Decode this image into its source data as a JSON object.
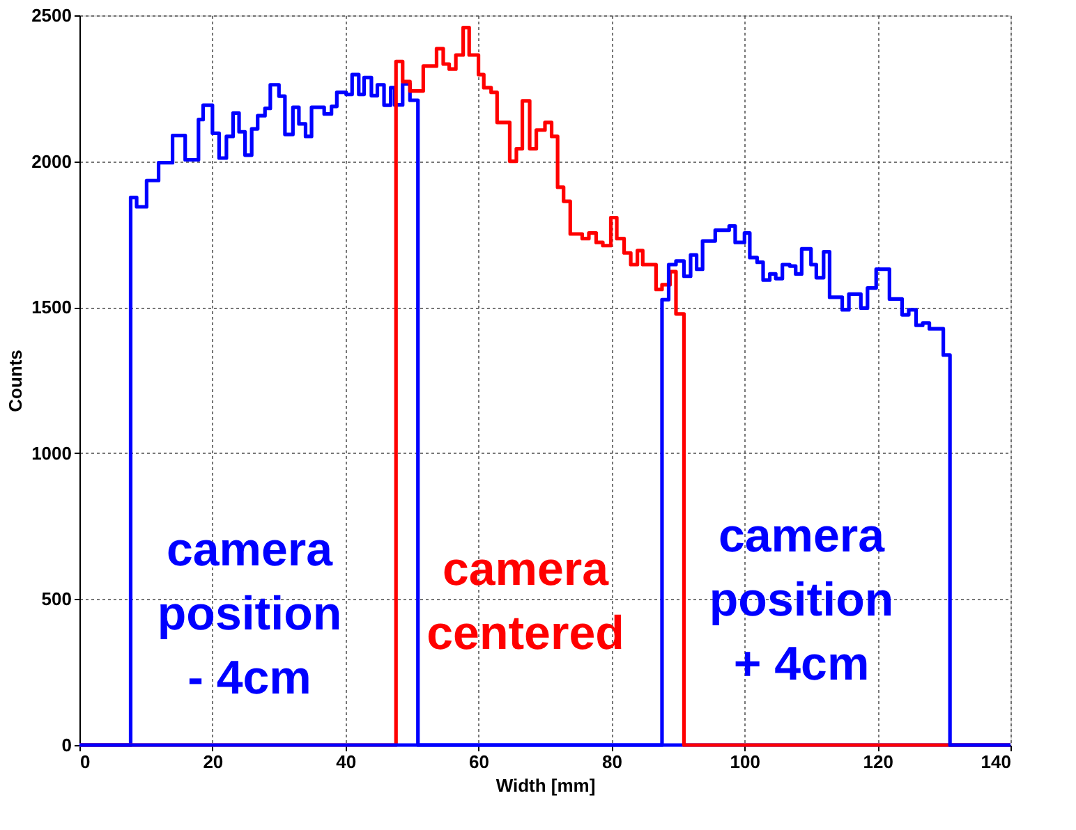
{
  "chart_data": {
    "type": "step",
    "xlabel": "Width [mm]",
    "ylabel": "Counts",
    "xlim": [
      0,
      140
    ],
    "xticks": [
      0,
      20,
      40,
      60,
      80,
      100,
      120,
      140
    ],
    "ylim": [
      0,
      2500
    ],
    "yticks": [
      0,
      500,
      1000,
      1500,
      2000,
      2500
    ],
    "grid": true,
    "line_style": "solid",
    "marker": "none",
    "series": [
      {
        "color": "#0000ff",
        "x": [
          0,
          7.7,
          8.6,
          10.1,
          11.9,
          14.0,
          15.9,
          17.9,
          18.6,
          20.0,
          21.0,
          22.1,
          23.1,
          24.0,
          24.9,
          25.9,
          26.8,
          27.9,
          28.7,
          30.0,
          30.9,
          32.1,
          33.0,
          34.0,
          34.9,
          36.8,
          37.9,
          38.7,
          40.1,
          41.0,
          42.0,
          42.8,
          43.9,
          44.8,
          45.8,
          46.8,
          47.4,
          48.6,
          49.7,
          50.9,
          140
        ],
        "values": [
          0,
          1876,
          1844,
          1934,
          1995,
          2088,
          2005,
          2143,
          2192,
          2096,
          2011,
          2085,
          2165,
          2101,
          2021,
          2111,
          2156,
          2181,
          2262,
          2223,
          2092,
          2185,
          2128,
          2085,
          2185,
          2162,
          2188,
          2236,
          2229,
          2297,
          2229,
          2287,
          2225,
          2262,
          2192,
          2252,
          2193,
          2265,
          2209,
          0,
          0
        ]
      },
      {
        "color": "#ff0000",
        "x": [
          0,
          47.6,
          48.6,
          49.7,
          51.7,
          53.7,
          54.7,
          55.6,
          56.6,
          57.7,
          58.6,
          60.0,
          60.8,
          61.9,
          62.8,
          64.7,
          65.7,
          66.6,
          67.7,
          68.7,
          70.0,
          71.0,
          71.9,
          72.8,
          73.8,
          75.6,
          76.6,
          77.7,
          78.7,
          79.9,
          80.8,
          81.9,
          82.9,
          83.9,
          84.7,
          86.7,
          87.6,
          88.8,
          89.7,
          90.9,
          140
        ],
        "values": [
          0,
          2342,
          2273,
          2241,
          2326,
          2386,
          2333,
          2316,
          2364,
          2458,
          2364,
          2297,
          2252,
          2236,
          2133,
          2000,
          2043,
          2207,
          2043,
          2107,
          2133,
          2085,
          1911,
          1863,
          1751,
          1735,
          1754,
          1722,
          1711,
          1807,
          1735,
          1686,
          1646,
          1694,
          1646,
          1561,
          1577,
          1622,
          1477,
          0,
          0
        ]
      },
      {
        "color": "#0000ff",
        "x": [
          0,
          87.6,
          88.6,
          89.7,
          90.9,
          91.9,
          92.8,
          93.7,
          95.6,
          97.7,
          98.6,
          100.0,
          100.8,
          101.9,
          102.8,
          103.8,
          104.7,
          105.7,
          106.8,
          107.7,
          108.6,
          110.0,
          110.8,
          111.9,
          112.8,
          114.7,
          115.7,
          117.5,
          118.5,
          119.8,
          121.8,
          123.7,
          124.7,
          125.8,
          126.8,
          127.8,
          129.9,
          130.9,
          140
        ],
        "values": [
          0,
          1526,
          1646,
          1658,
          1606,
          1679,
          1630,
          1727,
          1764,
          1778,
          1722,
          1754,
          1670,
          1654,
          1593,
          1614,
          1598,
          1646,
          1641,
          1614,
          1700,
          1646,
          1601,
          1690,
          1534,
          1491,
          1545,
          1497,
          1566,
          1630,
          1528,
          1474,
          1491,
          1438,
          1446,
          1426,
          1336,
          0,
          0
        ]
      }
    ],
    "annotations": [
      "camera\nposition\n- 4cm",
      "camera\ncentered",
      "camera\nposition\n+ 4cm"
    ]
  }
}
